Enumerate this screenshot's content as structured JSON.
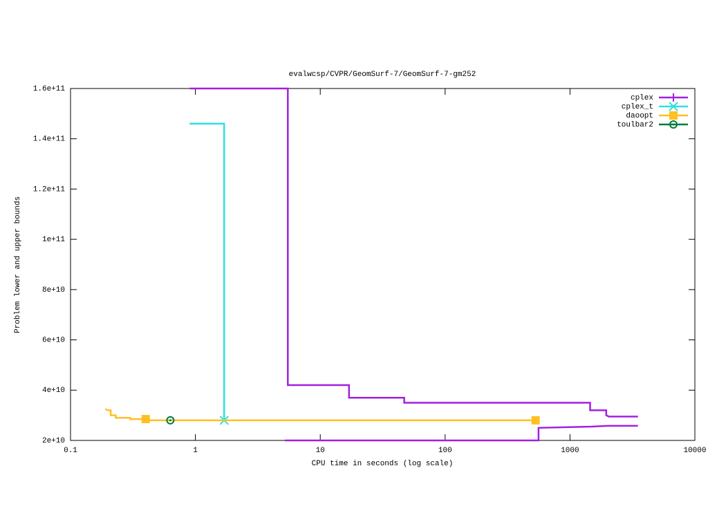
{
  "chart_data": {
    "type": "line",
    "title": "evalwcsp/CVPR/GeomSurf-7/GeomSurf-7-gm252",
    "x_label": "CPU time in seconds (log scale)",
    "y_label": "Problem lower and upper bounds",
    "x_log": true,
    "xlim": [
      0.1,
      10000
    ],
    "xticks": [
      0.1,
      1,
      10,
      100,
      1000,
      10000
    ],
    "ylim": [
      20000000000,
      160000000000
    ],
    "yticks": [
      {
        "value": 20000000000,
        "label": "2e+10"
      },
      {
        "value": 40000000000,
        "label": "4e+10"
      },
      {
        "value": 60000000000,
        "label": "6e+10"
      },
      {
        "value": 80000000000,
        "label": "8e+10"
      },
      {
        "value": 100000000000,
        "label": "1e+11"
      },
      {
        "value": 120000000000,
        "label": "1.2e+11"
      },
      {
        "value": 140000000000,
        "label": "1.4e+11"
      },
      {
        "value": 160000000000,
        "label": "1.6e+11"
      }
    ],
    "legend": "top-right",
    "series": [
      {
        "name": "cplex",
        "color": "#a21fe0",
        "marker": "plus",
        "x": [
          0.9,
          5.5,
          5.5,
          17,
          17,
          47,
          47,
          1450,
          1450,
          1950,
          1950,
          2050,
          3500,
          null,
          5.2,
          560,
          560,
          1500,
          2000,
          3500
        ],
        "values": [
          160000000000,
          160000000000,
          42000000000,
          42000000000,
          37000000000,
          37000000000,
          35000000000,
          35000000000,
          32000000000,
          32000000000,
          30000000000,
          29500000000,
          29500000000,
          null,
          20000000000,
          20000000000,
          25000000000,
          25500000000,
          25800000000,
          25800000000
        ]
      },
      {
        "name": "cplex_t",
        "color": "#2ee0e0",
        "marker": "cross",
        "x": [
          0.9,
          1.7,
          1.7
        ],
        "values": [
          146000000000,
          146000000000,
          28000000000
        ]
      },
      {
        "name": "daoopt",
        "color": "#ffc020",
        "marker": "square",
        "x": [
          0.19,
          0.2,
          0.21,
          0.21,
          0.23,
          0.23,
          0.3,
          0.3,
          0.4,
          0.4,
          530
        ],
        "values": [
          32500000000,
          32000000000,
          32000000000,
          30000000000,
          30000000000,
          29000000000,
          29000000000,
          28500000000,
          28500000000,
          28000000000,
          28000000000
        ]
      },
      {
        "name": "toulbar2",
        "color": "#007a3d",
        "marker": "circle",
        "x": [
          0.63
        ],
        "values": [
          28000000000
        ]
      }
    ]
  }
}
